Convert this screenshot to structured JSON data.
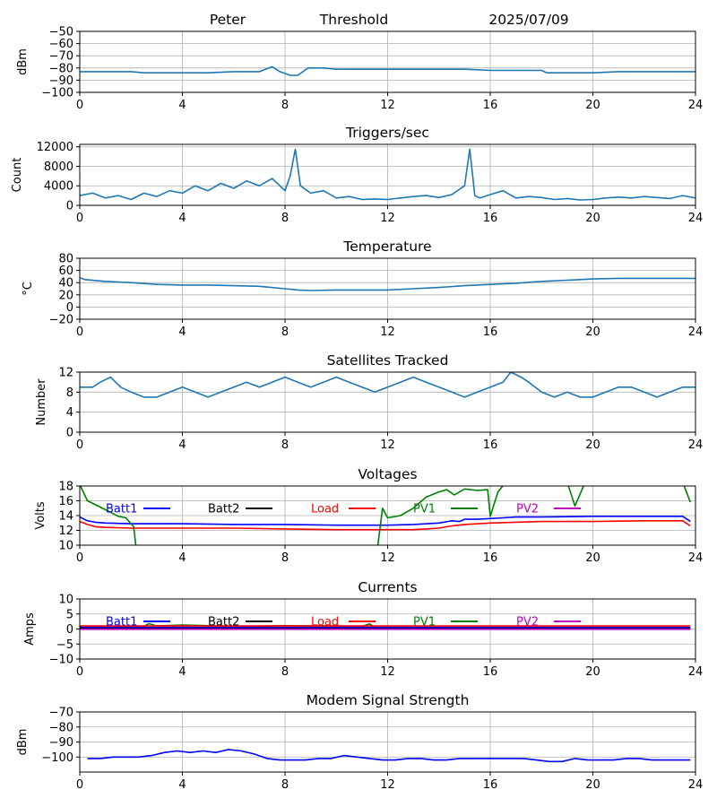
{
  "header": {
    "name": "Peter",
    "label": "Threshold",
    "date": "2025/07/09"
  },
  "chart_data": [
    {
      "type": "line",
      "title": "",
      "ylabel": "dBm",
      "xlim": [
        0,
        24
      ],
      "ylim": [
        -100,
        -50
      ],
      "xticks": [
        0,
        4,
        8,
        12,
        16,
        20,
        24
      ],
      "yticks": [
        -100,
        -90,
        -80,
        -70,
        -60,
        -50
      ],
      "ytick_labels": [
        "−100",
        "−90",
        "−80",
        "−70",
        "−60",
        "−50"
      ],
      "grid": true,
      "series": [
        {
          "color": "#1f77b4",
          "x": [
            0,
            1,
            2,
            2.5,
            3,
            4,
            5,
            6,
            7,
            7.5,
            7.8,
            8.2,
            8.5,
            8.9,
            9.5,
            10,
            11,
            12,
            13,
            14,
            15,
            16,
            17,
            18,
            18.2,
            19,
            20,
            21,
            22,
            23,
            24
          ],
          "y": [
            -83,
            -83,
            -83,
            -84,
            -84,
            -84,
            -84,
            -83,
            -83,
            -79,
            -83,
            -86,
            -86,
            -80,
            -80,
            -81,
            -81,
            -81,
            -81,
            -81,
            -81,
            -82,
            -82,
            -82,
            -84,
            -84,
            -84,
            -83,
            -83,
            -83,
            -83
          ]
        }
      ]
    },
    {
      "type": "line",
      "title": "Triggers/sec",
      "ylabel": "Count",
      "xlim": [
        0,
        24
      ],
      "ylim": [
        0,
        12500
      ],
      "xticks": [
        0,
        4,
        8,
        12,
        16,
        20,
        24
      ],
      "yticks": [
        0,
        4000,
        8000,
        12000
      ],
      "ytick_labels": [
        "0",
        "4000",
        "8000",
        "12000"
      ],
      "grid": true,
      "series": [
        {
          "color": "#1f77b4",
          "x": [
            0,
            0.5,
            1,
            1.5,
            2,
            2.5,
            3,
            3.5,
            4,
            4.5,
            5,
            5.5,
            6,
            6.5,
            7,
            7.5,
            8,
            8.2,
            8.4,
            8.6,
            9,
            9.5,
            10,
            10.5,
            11,
            11.5,
            12,
            12.5,
            13,
            13.5,
            14,
            14.5,
            15,
            15.2,
            15.4,
            15.6,
            16,
            16.5,
            17,
            17.5,
            18,
            18.5,
            19,
            19.5,
            20,
            20.5,
            21,
            21.5,
            22,
            22.5,
            23,
            23.5,
            24
          ],
          "y": [
            2000,
            2500,
            1500,
            2000,
            1200,
            2500,
            1800,
            3000,
            2500,
            4000,
            3000,
            4500,
            3500,
            5000,
            4000,
            5500,
            3000,
            6000,
            11500,
            4000,
            2500,
            3000,
            1500,
            1800,
            1200,
            1300,
            1200,
            1500,
            1800,
            2000,
            1600,
            2200,
            4000,
            11500,
            2000,
            1500,
            2200,
            3000,
            1500,
            1800,
            1600,
            1200,
            1400,
            1100,
            1200,
            1500,
            1700,
            1500,
            1800,
            1600,
            1400,
            2000,
            1500
          ]
        }
      ]
    },
    {
      "type": "line",
      "title": "Temperature",
      "ylabel": "°C",
      "xlim": [
        0,
        24
      ],
      "ylim": [
        -20,
        80
      ],
      "xticks": [
        0,
        4,
        8,
        12,
        16,
        20,
        24
      ],
      "yticks": [
        -20,
        0,
        20,
        40,
        60,
        80
      ],
      "ytick_labels": [
        "−20",
        "0",
        "20",
        "40",
        "60",
        "80"
      ],
      "grid": true,
      "series": [
        {
          "color": "#1f77b4",
          "x": [
            0,
            0.2,
            1,
            2,
            3,
            4,
            5,
            6,
            7,
            8,
            8.5,
            9,
            10,
            11,
            12,
            13,
            14,
            15,
            16,
            17,
            18,
            19,
            20,
            21,
            22,
            23,
            24
          ],
          "y": [
            48,
            45,
            42,
            40,
            37,
            36,
            36,
            35,
            34,
            30,
            28,
            27,
            28,
            28,
            28,
            30,
            32,
            35,
            37,
            39,
            42,
            44,
            46,
            47,
            47,
            47,
            47
          ]
        }
      ]
    },
    {
      "type": "line",
      "title": "Satellites Tracked",
      "ylabel": "Number",
      "xlim": [
        0,
        24
      ],
      "ylim": [
        0,
        12
      ],
      "xticks": [
        0,
        4,
        8,
        12,
        16,
        20,
        24
      ],
      "yticks": [
        0,
        4,
        8,
        12
      ],
      "ytick_labels": [
        "0",
        "4",
        "8",
        "12"
      ],
      "grid": true,
      "series": [
        {
          "color": "#1f77b4",
          "x": [
            0,
            0.5,
            0.8,
            1.2,
            1.6,
            2,
            2.5,
            3,
            3.5,
            4,
            4.5,
            5,
            5.5,
            6,
            6.5,
            7,
            7.5,
            8,
            8.5,
            9,
            9.5,
            10,
            10.5,
            11,
            11.5,
            12,
            12.5,
            13,
            13.5,
            14,
            14.5,
            15,
            15.5,
            16,
            16.5,
            16.8,
            17.2,
            17.5,
            18,
            18.5,
            19,
            19.5,
            20,
            20.5,
            21,
            21.5,
            22,
            22.5,
            23,
            23.5,
            24
          ],
          "y": [
            9,
            9,
            10,
            11,
            9,
            8,
            7,
            7,
            8,
            9,
            8,
            7,
            8,
            9,
            10,
            9,
            10,
            11,
            10,
            9,
            10,
            11,
            10,
            9,
            8,
            9,
            10,
            11,
            10,
            9,
            8,
            7,
            8,
            9,
            10,
            12,
            11,
            10,
            8,
            7,
            8,
            7,
            7,
            8,
            9,
            9,
            8,
            7,
            8,
            9,
            9
          ]
        }
      ]
    },
    {
      "type": "line",
      "title": "Voltages",
      "ylabel": "Volts",
      "xlim": [
        0,
        24
      ],
      "ylim": [
        10,
        18
      ],
      "xticks": [
        0,
        4,
        8,
        12,
        16,
        20,
        24
      ],
      "yticks": [
        10,
        12,
        14,
        16,
        18
      ],
      "ytick_labels": [
        "10",
        "12",
        "14",
        "16",
        "18"
      ],
      "grid": true,
      "legend": [
        {
          "label": "Batt1",
          "color": "#0000ff"
        },
        {
          "label": "Batt2",
          "color": "#000000"
        },
        {
          "label": "Load",
          "color": "#ff0000"
        },
        {
          "label": "PV1",
          "color": "#008000"
        },
        {
          "label": "PV2",
          "color": "#bf00bf"
        }
      ],
      "series": [
        {
          "color": "#0000ff",
          "x": [
            0,
            0.3,
            0.6,
            1,
            2,
            4,
            6,
            8,
            10,
            12,
            13,
            14,
            14.5,
            14.8,
            15,
            15.5,
            16,
            16.5,
            17,
            18,
            20,
            22,
            23.5,
            23.8
          ],
          "y": [
            13.8,
            13.3,
            13.1,
            13,
            12.9,
            12.9,
            12.8,
            12.8,
            12.7,
            12.7,
            12.8,
            13.0,
            13.3,
            13.2,
            13.5,
            13.5,
            13.6,
            13.7,
            13.8,
            13.8,
            13.9,
            13.9,
            13.9,
            13.2
          ]
        },
        {
          "color": "#ff0000",
          "x": [
            0,
            0.3,
            0.6,
            1,
            2,
            4,
            6,
            8,
            10,
            11.5,
            12,
            13,
            13.5,
            14,
            14.5,
            15,
            16,
            17,
            18,
            20,
            22,
            23.5,
            23.8
          ],
          "y": [
            13.2,
            12.8,
            12.5,
            12.4,
            12.3,
            12.3,
            12.3,
            12.2,
            12.1,
            12.1,
            12.1,
            12.1,
            12.2,
            12.3,
            12.6,
            12.8,
            13.0,
            13.1,
            13.2,
            13.2,
            13.3,
            13.3,
            12.6
          ]
        },
        {
          "color": "#008000",
          "x": [
            0,
            0.3,
            1,
            1.5,
            1.8,
            2.1,
            2.2,
            11.6,
            11.8,
            12,
            12.5,
            13,
            13.5,
            14,
            14.3,
            14.6,
            15,
            15.5,
            15.9,
            16,
            16.3,
            16.6,
            16.8,
            19,
            19.3,
            19.7,
            23.5,
            23.8
          ],
          "y": [
            18.2,
            16,
            14.8,
            13.9,
            13.7,
            12.5,
            9.5,
            9.5,
            15,
            13.7,
            14,
            15,
            16.5,
            17.2,
            17.5,
            16.8,
            17.6,
            17.4,
            17.5,
            13.9,
            17.2,
            18.5,
            18.5,
            18.5,
            15.3,
            18.5,
            18.5,
            15.8
          ]
        }
      ]
    },
    {
      "type": "line",
      "title": "Currents",
      "ylabel": "Amps",
      "xlim": [
        0,
        24
      ],
      "ylim": [
        -10,
        10
      ],
      "xticks": [
        0,
        4,
        8,
        12,
        16,
        20,
        24
      ],
      "yticks": [
        -10,
        -5,
        0,
        5,
        10
      ],
      "ytick_labels": [
        "−10",
        "−5",
        "0",
        "5",
        "10"
      ],
      "grid": true,
      "legend": [
        {
          "label": "Batt1",
          "color": "#0000ff"
        },
        {
          "label": "Batt2",
          "color": "#000000"
        },
        {
          "label": "Load",
          "color": "#ff0000"
        },
        {
          "label": "PV1",
          "color": "#008000"
        },
        {
          "label": "PV2",
          "color": "#bf00bf"
        }
      ],
      "series": [
        {
          "color": "#008000",
          "x": [
            0,
            2,
            2.5,
            2.7,
            3,
            4,
            6,
            8,
            10,
            11,
            11.3,
            11.5
          ],
          "y": [
            0.8,
            0.8,
            0.9,
            1.8,
            1.0,
            1.3,
            0.9,
            1.1,
            1.0,
            0.9,
            1.7,
            0.5
          ]
        },
        {
          "color": "#ff0000",
          "x": [
            0,
            4,
            8,
            12,
            16,
            20,
            23.8
          ],
          "y": [
            1.0,
            1.0,
            1.0,
            1.0,
            1.0,
            1.0,
            1.0
          ]
        },
        {
          "color": "#0000ff",
          "x": [
            0,
            4,
            8,
            12,
            16,
            20,
            23.8
          ],
          "y": [
            0.5,
            0.5,
            0.5,
            0.5,
            0.5,
            0.5,
            0.5
          ]
        },
        {
          "color": "#000000",
          "x": [
            0,
            4,
            8,
            12,
            16,
            20,
            23.8
          ],
          "y": [
            0.1,
            0.1,
            0.1,
            0.1,
            0.1,
            0.1,
            0.1
          ]
        },
        {
          "color": "#bf00bf",
          "x": [
            0,
            4,
            8,
            12,
            16,
            20,
            23.8
          ],
          "y": [
            -0.1,
            -0.1,
            -0.1,
            -0.1,
            -0.1,
            -0.1,
            -0.1
          ]
        }
      ]
    },
    {
      "type": "line",
      "title": "Modem Signal Strength",
      "ylabel": "dBm",
      "xlim": [
        0,
        24
      ],
      "ylim": [
        -110,
        -70
      ],
      "xticks": [
        0,
        4,
        8,
        12,
        16,
        20,
        24
      ],
      "yticks": [
        -100,
        -90,
        -80,
        -70
      ],
      "ytick_labels": [
        "−100",
        "−90",
        "−80",
        "−70"
      ],
      "grid": true,
      "series": [
        {
          "color": "#0000ff",
          "x": [
            0.3,
            0.8,
            1.3,
            2.3,
            2.8,
            3.3,
            3.8,
            4.3,
            4.8,
            5.3,
            5.8,
            6.3,
            6.8,
            7.3,
            7.8,
            8.3,
            8.8,
            9.3,
            9.8,
            10.3,
            10.8,
            11.3,
            11.8,
            12.3,
            12.8,
            13.3,
            13.8,
            14.3,
            14.8,
            15.3,
            15.8,
            16.3,
            16.8,
            17.3,
            17.8,
            18.3,
            18.8,
            19.3,
            19.8,
            20.3,
            20.8,
            21.3,
            21.8,
            22.3,
            22.8,
            23.3,
            23.8
          ],
          "y": [
            -101,
            -101,
            -100,
            -100,
            -99,
            -97,
            -96,
            -97,
            -96,
            -97,
            -95,
            -96,
            -98,
            -101,
            -102,
            -102,
            -102,
            -101,
            -101,
            -99,
            -100,
            -101,
            -102,
            -102,
            -101,
            -101,
            -102,
            -102,
            -101,
            -101,
            -101,
            -101,
            -101,
            -101,
            -102,
            -103,
            -103,
            -101,
            -102,
            -102,
            -102,
            -101,
            -101,
            -102,
            -102,
            -102,
            -102
          ]
        }
      ]
    }
  ]
}
